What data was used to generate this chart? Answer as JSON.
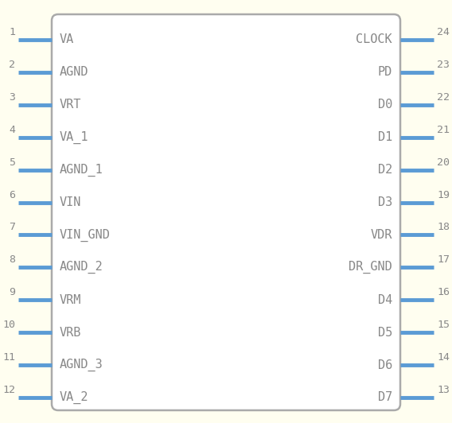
{
  "bg_color": "#fffef0",
  "box_color": "#aaaaaa",
  "pin_line_color": "#5b9bd5",
  "text_color": "#888888",
  "num_color": "#888888",
  "left_pins": [
    {
      "num": 1,
      "label": "VA"
    },
    {
      "num": 2,
      "label": "AGND"
    },
    {
      "num": 3,
      "label": "VRT"
    },
    {
      "num": 4,
      "label": "VA_1"
    },
    {
      "num": 5,
      "label": "AGND_1"
    },
    {
      "num": 6,
      "label": "VIN"
    },
    {
      "num": 7,
      "label": "VIN_GND"
    },
    {
      "num": 8,
      "label": "AGND_2"
    },
    {
      "num": 9,
      "label": "VRM"
    },
    {
      "num": 10,
      "label": "VRB"
    },
    {
      "num": 11,
      "label": "AGND_3"
    },
    {
      "num": 12,
      "label": "VA_2"
    }
  ],
  "right_pins": [
    {
      "num": 24,
      "label": "CLOCK"
    },
    {
      "num": 23,
      "label": "PD"
    },
    {
      "num": 22,
      "label": "D0"
    },
    {
      "num": 21,
      "label": "D1"
    },
    {
      "num": 20,
      "label": "D2"
    },
    {
      "num": 19,
      "label": "D3"
    },
    {
      "num": 18,
      "label": "VDR"
    },
    {
      "num": 17,
      "label": "DR_GND"
    },
    {
      "num": 16,
      "label": "D4"
    },
    {
      "num": 15,
      "label": "D5"
    },
    {
      "num": 14,
      "label": "D6"
    },
    {
      "num": 13,
      "label": "D7"
    }
  ],
  "figsize": [
    5.68,
    5.32
  ],
  "dpi": 100
}
